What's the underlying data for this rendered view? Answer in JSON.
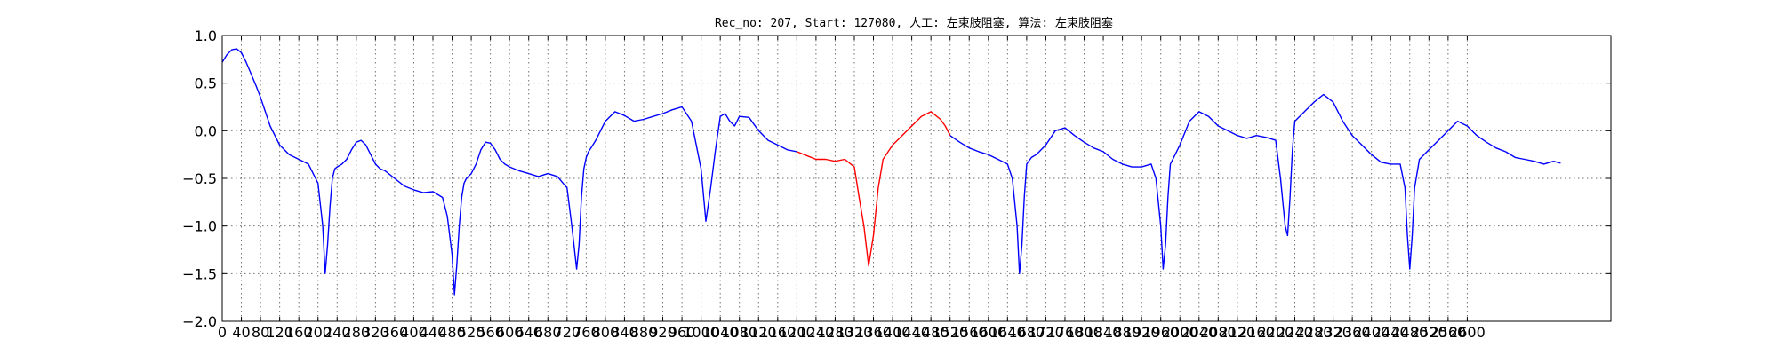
{
  "chart_data": {
    "type": "line",
    "title": "Rec_no: 207, Start: 127080, 人工: 左束肢阻塞, 算法: 左束肢阻塞",
    "xlabel": "",
    "ylabel": "",
    "xlim": [
      0,
      2900
    ],
    "ylim": [
      -2.0,
      1.0
    ],
    "grid": true,
    "x_ticks": [
      0,
      40,
      80,
      120,
      160,
      200,
      240,
      280,
      320,
      360,
      400,
      440,
      480,
      520,
      560,
      600,
      640,
      680,
      720,
      760,
      800,
      840,
      880,
      920,
      960,
      1000,
      1040,
      1080,
      1120,
      1160,
      1200,
      1240,
      1280,
      1320,
      1360,
      1400,
      1440,
      1480,
      1520,
      1560,
      1600,
      1640,
      1680,
      1720,
      1760,
      1800,
      1840,
      1880,
      1920,
      1960,
      2000,
      2040,
      2080,
      2120,
      2160,
      2200,
      2240,
      2280,
      2320,
      2360,
      2400,
      2440,
      2480,
      2520,
      2560,
      2600
    ],
    "y_ticks": [
      1.0,
      0.5,
      0.0,
      -0.5,
      -1.0,
      -1.5,
      -2.0
    ],
    "y_tick_labels": [
      "1.0",
      "0.5",
      "0.0",
      "−0.5",
      "−1.0",
      "−1.5",
      "−2.0"
    ],
    "series": [
      {
        "color": "#0000ff",
        "x": [
          0,
          10,
          20,
          30,
          40,
          50,
          60,
          70,
          80,
          90,
          100,
          120,
          140,
          160,
          180,
          200,
          210,
          215,
          220,
          225,
          230,
          235,
          240,
          250,
          260,
          270,
          280,
          290,
          300,
          310,
          320,
          330,
          340,
          360,
          380,
          400,
          420,
          440,
          460,
          470,
          480,
          485,
          490,
          495,
          500,
          505,
          510,
          520,
          530,
          540,
          550,
          560,
          570,
          580,
          590,
          600,
          620,
          640,
          660,
          680,
          700,
          720,
          730,
          740,
          745,
          750,
          755,
          760,
          765,
          770,
          780,
          790,
          800,
          820,
          840,
          860,
          880,
          900,
          920,
          940,
          960,
          980,
          1000,
          1010,
          1020,
          1030,
          1040,
          1050,
          1060,
          1070,
          1080,
          1100,
          1120,
          1140,
          1160,
          1180,
          1200
        ],
        "y": [
          0.72,
          0.8,
          0.85,
          0.86,
          0.82,
          0.72,
          0.6,
          0.48,
          0.35,
          0.2,
          0.05,
          -0.15,
          -0.25,
          -0.3,
          -0.35,
          -0.55,
          -1.0,
          -1.5,
          -1.2,
          -0.8,
          -0.5,
          -0.4,
          -0.38,
          -0.35,
          -0.3,
          -0.2,
          -0.12,
          -0.1,
          -0.15,
          -0.25,
          -0.35,
          -0.4,
          -0.42,
          -0.5,
          -0.58,
          -0.62,
          -0.65,
          -0.64,
          -0.7,
          -0.9,
          -1.3,
          -1.72,
          -1.4,
          -1.0,
          -0.7,
          -0.55,
          -0.5,
          -0.45,
          -0.35,
          -0.2,
          -0.12,
          -0.13,
          -0.2,
          -0.3,
          -0.35,
          -0.38,
          -0.42,
          -0.45,
          -0.48,
          -0.45,
          -0.48,
          -0.6,
          -1.0,
          -1.45,
          -1.2,
          -0.7,
          -0.4,
          -0.28,
          -0.22,
          -0.18,
          -0.1,
          -0.0,
          0.1,
          0.2,
          0.16,
          0.1,
          0.12,
          0.15,
          0.18,
          0.22,
          0.25,
          0.1,
          -0.4,
          -0.95,
          -0.6,
          -0.2,
          0.15,
          0.18,
          0.1,
          0.05,
          0.15,
          0.14,
          0.0,
          -0.1,
          -0.15,
          -0.2,
          -0.22
        ]
      },
      {
        "color": "#ff0000",
        "x": [
          1200,
          1220,
          1240,
          1260,
          1280,
          1300,
          1320,
          1330,
          1340,
          1350,
          1360,
          1370,
          1380,
          1400,
          1420,
          1440,
          1460,
          1480,
          1500,
          1510,
          1520
        ],
        "y": [
          -0.22,
          -0.26,
          -0.3,
          -0.3,
          -0.32,
          -0.3,
          -0.38,
          -0.7,
          -1.0,
          -1.42,
          -1.1,
          -0.6,
          -0.3,
          -0.15,
          -0.05,
          0.05,
          0.15,
          0.2,
          0.12,
          0.05,
          -0.05
        ]
      },
      {
        "color": "#0000ff",
        "x": [
          1520,
          1540,
          1560,
          1580,
          1600,
          1620,
          1640,
          1650,
          1660,
          1665,
          1670,
          1675,
          1680,
          1690,
          1700,
          1720,
          1740,
          1760,
          1780,
          1800,
          1820,
          1840,
          1860,
          1880,
          1900,
          1920,
          1940,
          1950,
          1960,
          1965,
          1970,
          1975,
          1980,
          1990,
          2000,
          2020,
          2040,
          2060,
          2080,
          2100,
          2120,
          2140,
          2160,
          2180,
          2200,
          2210,
          2220,
          2225,
          2230,
          2235,
          2240,
          2260,
          2280,
          2300,
          2320,
          2340,
          2360,
          2380,
          2400,
          2420,
          2440,
          2460,
          2470,
          2475,
          2480,
          2485,
          2490,
          2500,
          2520,
          2540,
          2560,
          2580,
          2600,
          2620,
          2640,
          2660,
          2680,
          2700,
          2720,
          2740,
          2760,
          2780,
          2795
        ],
        "y": [
          -0.05,
          -0.12,
          -0.18,
          -0.22,
          -0.25,
          -0.3,
          -0.35,
          -0.5,
          -1.0,
          -1.5,
          -1.2,
          -0.7,
          -0.35,
          -0.28,
          -0.25,
          -0.15,
          0.0,
          0.03,
          -0.05,
          -0.12,
          -0.18,
          -0.22,
          -0.3,
          -0.35,
          -0.38,
          -0.38,
          -0.35,
          -0.5,
          -1.0,
          -1.45,
          -1.2,
          -0.7,
          -0.35,
          -0.25,
          -0.15,
          0.1,
          0.2,
          0.15,
          0.05,
          0.0,
          -0.05,
          -0.08,
          -0.05,
          -0.07,
          -0.1,
          -0.5,
          -1.0,
          -1.1,
          -0.7,
          -0.2,
          0.1,
          0.2,
          0.3,
          0.38,
          0.3,
          0.1,
          -0.05,
          -0.15,
          -0.25,
          -0.33,
          -0.35,
          -0.35,
          -0.6,
          -1.1,
          -1.45,
          -1.1,
          -0.6,
          -0.3,
          -0.2,
          -0.1,
          0.0,
          0.1,
          0.05,
          -0.05,
          -0.12,
          -0.18,
          -0.22,
          -0.28,
          -0.3,
          -0.32,
          -0.35,
          -0.32,
          -0.34
        ]
      }
    ]
  }
}
